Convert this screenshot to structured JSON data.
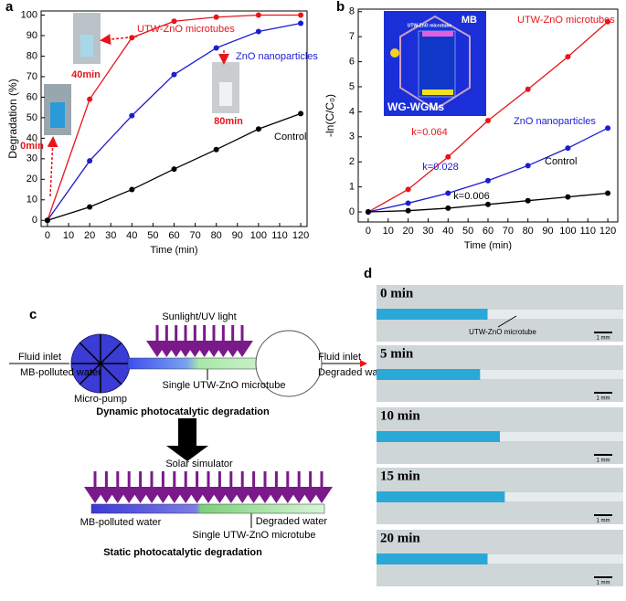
{
  "panels": [
    "a",
    "b",
    "c",
    "d"
  ],
  "chart_data": [
    {
      "type": "line",
      "x_label": "Time (min)",
      "y_label": "Degradation (%)",
      "x": [
        0,
        20,
        40,
        60,
        80,
        100,
        120
      ],
      "series": [
        {
          "name": "UTW-ZnO microtubes",
          "color": "#e8141b",
          "values": [
            0,
            59,
            89,
            97,
            99,
            100,
            100
          ]
        },
        {
          "name": "ZnO nanoparticles",
          "color": "#1c1cd0",
          "values": [
            0,
            29,
            51,
            71,
            84,
            92,
            96
          ]
        },
        {
          "name": "Control",
          "color": "#000000",
          "values": [
            0,
            6.5,
            15,
            25,
            34.5,
            44.5,
            52
          ]
        }
      ],
      "xlim": [
        -3,
        123
      ],
      "ylim": [
        -3,
        102
      ],
      "xticks": [
        0,
        10,
        20,
        30,
        40,
        50,
        60,
        70,
        80,
        90,
        100,
        110,
        120
      ],
      "yticks": [
        0,
        10,
        20,
        30,
        40,
        50,
        60,
        70,
        80,
        90,
        100
      ],
      "annotations": [
        "40min",
        "0min",
        "80min"
      ]
    },
    {
      "type": "line",
      "x_label": "Time (min)",
      "y_label": "-ln(C/C₀)",
      "x": [
        0,
        20,
        40,
        60,
        80,
        100,
        120
      ],
      "series": [
        {
          "name": "UTW-ZnO microtubes",
          "color": "#e8141b",
          "values": [
            0,
            0.9,
            2.2,
            3.65,
            4.9,
            6.2,
            7.6
          ]
        },
        {
          "name": "ZnO nanoparticles",
          "color": "#1c1cd0",
          "values": [
            0,
            0.35,
            0.75,
            1.25,
            1.85,
            2.55,
            3.35
          ]
        },
        {
          "name": "Control",
          "color": "#000000",
          "values": [
            0,
            0.05,
            0.15,
            0.3,
            0.45,
            0.6,
            0.75
          ]
        }
      ],
      "xlim": [
        -5,
        125
      ],
      "ylim": [
        -0.4,
        8.1
      ],
      "xticks": [
        0,
        10,
        20,
        30,
        40,
        50,
        60,
        70,
        80,
        90,
        100,
        110,
        120
      ],
      "yticks": [
        0,
        1,
        2,
        3,
        4,
        5,
        6,
        7,
        8
      ],
      "annotations": [
        "k=0.064",
        "k=0.028",
        "k=0.006"
      ],
      "inset_labels": [
        "MB",
        "WG-WGMs",
        "UTW-ZnO microtube"
      ]
    }
  ],
  "diagram": {
    "light": "Sunlight/UV light",
    "inlet_left": "Fluid inlet",
    "source_left": "MB-polluted water",
    "pump": "Micro-pump",
    "tube": "Single UTW-ZnO microtube",
    "inlet_right": "Fluid inlet",
    "output_right": "Degraded water",
    "dynamic_title": "Dynamic photocatalytic degradation",
    "simulator": "Solar simulator",
    "static_source": "MB-polluted water",
    "static_output": "Degraded water",
    "static_tube": "Single UTW-ZnO microtube",
    "static_title": "Static photocatalytic degradation"
  },
  "micrographs": {
    "times": [
      "0 min",
      "5 min",
      "10 min",
      "15 min",
      "20 min"
    ],
    "pointer": "UTW-ZnO microtube",
    "scale_bar": "1 mm"
  }
}
